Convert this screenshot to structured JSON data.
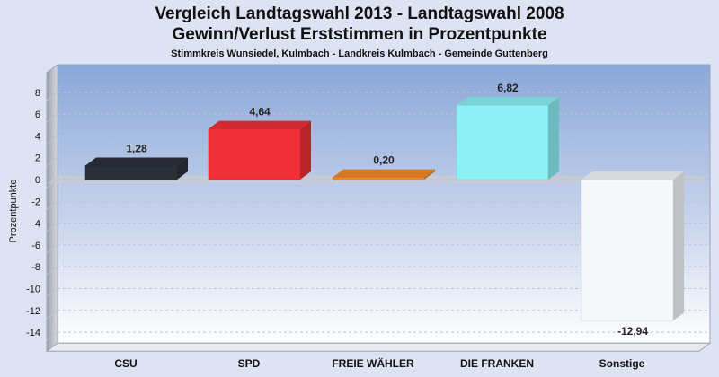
{
  "header": {
    "title_line1": "Vergleich Landtagswahl 2013 - Landtagswahl 2008",
    "title_line2": "Gewinn/Verlust Erststimmen in Prozentpunkte",
    "subtitle": "Stimmkreis Wunsiedel, Kulmbach - Landkreis Kulmbach - Gemeinde Guttenberg"
  },
  "chart_data": {
    "type": "bar",
    "title": "Vergleich Landtagswahl 2013 - Landtagswahl 2008 / Gewinn/Verlust Erststimmen in Prozentpunkte",
    "subtitle": "Stimmkreis Wunsiedel, Kulmbach - Landkreis Kulmbach - Gemeinde Guttenberg",
    "xlabel": "",
    "ylabel": "Prozentpunkte",
    "ylim": [
      -15,
      10
    ],
    "yticks": [
      8,
      6,
      4,
      2,
      0,
      -2,
      -4,
      -6,
      -8,
      -10,
      -12,
      -14
    ],
    "categories": [
      "CSU",
      "SPD",
      "FREIE WÄHLER",
      "DIE FRANKEN",
      "Sonstige"
    ],
    "values": [
      1.28,
      4.64,
      0.2,
      6.82,
      -12.94
    ],
    "value_labels": [
      "1,28",
      "4,64",
      "0,20",
      "6,82",
      "-12,94"
    ],
    "colors": [
      "#2b2f38",
      "#ef3038",
      "#f08a2a",
      "#8cf0f4",
      "#f6f7fb"
    ],
    "grid": true,
    "legend": "none"
  }
}
